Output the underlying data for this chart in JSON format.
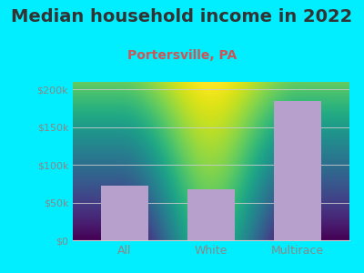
{
  "title": "Median household income in 2022",
  "subtitle": "Portersville, PA",
  "categories": [
    "All",
    "White",
    "Multirace"
  ],
  "values": [
    72000,
    68000,
    185000
  ],
  "bar_color": "#b8a0cc",
  "background_outer": "#00eeff",
  "background_plot_top_left": "#f0faf0",
  "background_plot_bottom_right": "#d0ecd0",
  "yticks": [
    0,
    50000,
    100000,
    150000,
    200000
  ],
  "ytick_labels": [
    "$0",
    "$50k",
    "$100k",
    "$150k",
    "$200k"
  ],
  "ylim": [
    0,
    210000
  ],
  "title_fontsize": 14,
  "subtitle_fontsize": 10,
  "subtitle_color": "#cc5555",
  "tick_color": "#888888",
  "grid_color": "#cccccc",
  "title_color": "#333333"
}
